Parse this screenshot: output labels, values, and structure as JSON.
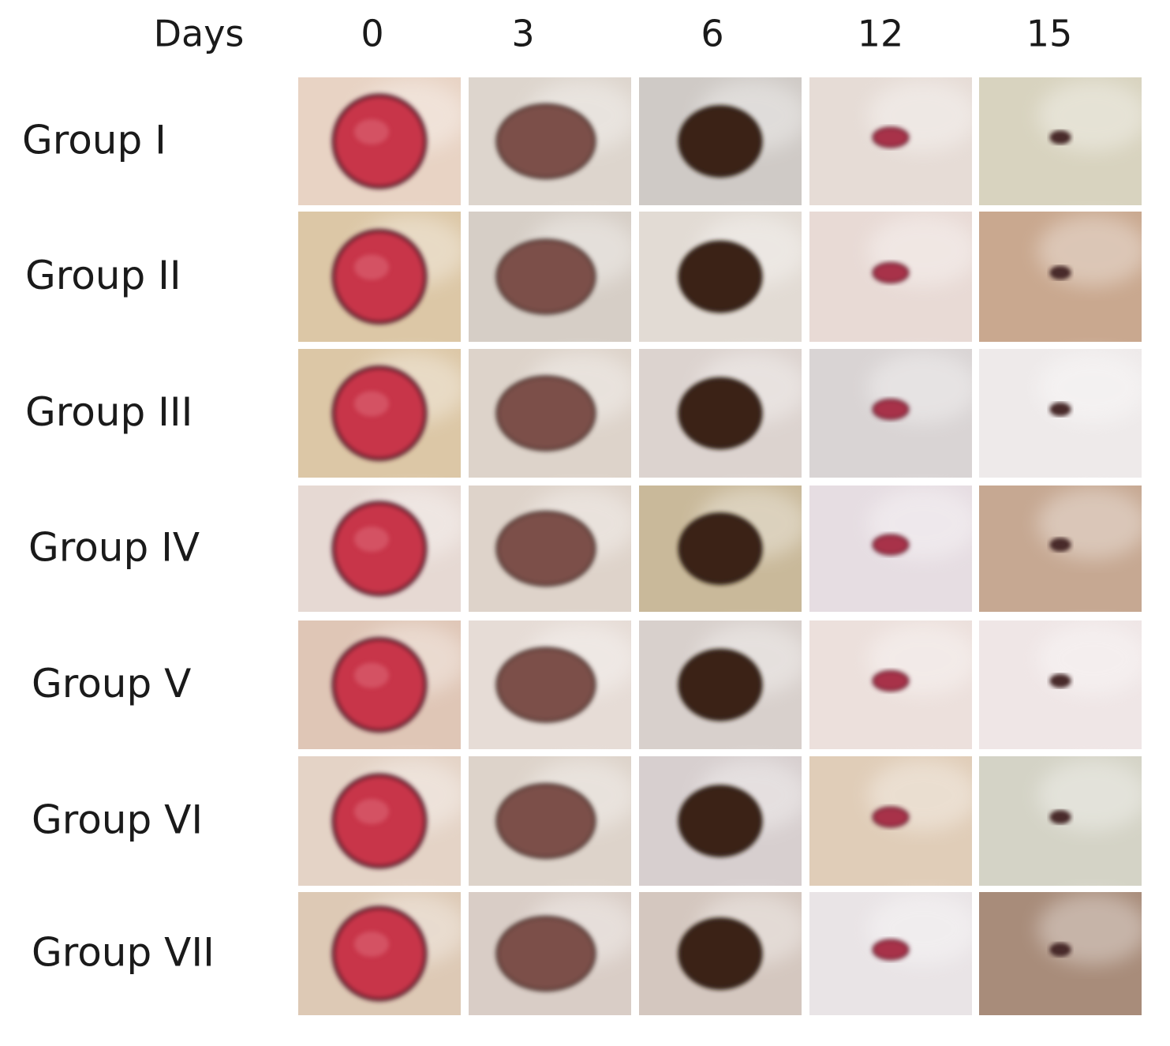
{
  "header": {
    "title": "Days",
    "days": [
      "0",
      "3",
      "6",
      "12",
      "15"
    ]
  },
  "rows": [
    "Group I",
    "Group II",
    "Group III",
    "Group IV",
    "Group V",
    "Group VI",
    "Group VII"
  ]
}
